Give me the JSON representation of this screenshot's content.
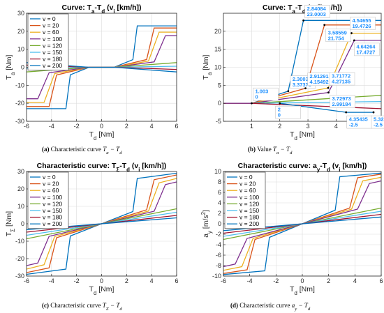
{
  "legend_entries": [
    "v = 0",
    "v = 20",
    "v = 60",
    "v = 100",
    "v = 120",
    "v = 150",
    "v = 180",
    "v = 200"
  ],
  "colors": [
    "#0072BD",
    "#D95319",
    "#EDB120",
    "#7E2F8E",
    "#77AC30",
    "#4DBEEE",
    "#A2142F",
    "#0072BD"
  ],
  "chart_data": [
    {
      "type": "line",
      "title": "Curve: T_a-T_d (v_i [km/h])",
      "xlabel": "T_d [Nm]",
      "ylabel": "T_a [Nm]",
      "xlim": [
        -6,
        6
      ],
      "ylim": [
        -30,
        30
      ],
      "xticks": [
        -6,
        -4,
        -2,
        0,
        2,
        4,
        6
      ],
      "yticks": [
        -30,
        -20,
        -10,
        0,
        10,
        20,
        30
      ],
      "grid": true,
      "legend": "top-left",
      "series": [
        {
          "name": "v = 0",
          "x": [
            -6,
            -2.85,
            -2.5,
            -1,
            1,
            2.5,
            2.85,
            6
          ],
          "y": [
            -23,
            -23,
            -4.2,
            0,
            0,
            4.2,
            23,
            23
          ]
        },
        {
          "name": "v = 20",
          "x": [
            -6,
            -4.2,
            -3.6,
            -1,
            1,
            3.6,
            4.2,
            6
          ],
          "y": [
            -21.8,
            -21.8,
            -4.3,
            0,
            0,
            4.3,
            21.8,
            21.8
          ]
        },
        {
          "name": "v = 60",
          "x": [
            -6,
            -4.6,
            -3.75,
            -1,
            1,
            3.75,
            4.6,
            6
          ],
          "y": [
            -19.5,
            -19.5,
            -3.5,
            0,
            0,
            3.5,
            19.5,
            19.5
          ]
        },
        {
          "name": "v = 100",
          "x": [
            -6,
            -5.1,
            -4.2,
            -1,
            1,
            4.2,
            5.1,
            6
          ],
          "y": [
            -17.5,
            -17.5,
            -3.0,
            0,
            0,
            3.0,
            17.5,
            17.5
          ]
        },
        {
          "name": "v = 120",
          "x": [
            -6,
            -1,
            1,
            6
          ],
          "y": [
            -2.6,
            0,
            0,
            2.6
          ]
        },
        {
          "name": "v = 150",
          "x": [
            -6,
            -1,
            1,
            6
          ],
          "y": [
            -0.6,
            0,
            0,
            0.6
          ]
        },
        {
          "name": "v = 180",
          "x": [
            -6,
            -1,
            1,
            6
          ],
          "y": [
            1.2,
            0,
            0,
            -1.2
          ]
        },
        {
          "name": "v = 200",
          "x": [
            -6,
            -1,
            1,
            6
          ],
          "y": [
            2.6,
            0,
            0,
            -2.6
          ]
        }
      ]
    },
    {
      "type": "line",
      "title": "Curve: T_a-T_d (v_i [km/h])",
      "xlabel": "T_d [Nm]",
      "ylabel": "T_a [Nm]",
      "xlim": [
        0,
        5.6
      ],
      "ylim": [
        -5,
        25
      ],
      "xticks": [
        1,
        2,
        3,
        4,
        5
      ],
      "yticks": [
        -5,
        0,
        5,
        10,
        15,
        20
      ],
      "grid": true,
      "series": [
        {
          "x": [
            0,
            1.003,
            2.3003,
            2.84084,
            5.6
          ],
          "y": [
            0,
            0,
            3.37378,
            23.0003,
            23.0003
          ]
        },
        {
          "x": [
            0,
            1.003,
            2.91291,
            3.58559,
            5.6
          ],
          "y": [
            0,
            0,
            4.15492,
            21.754,
            21.754
          ]
        },
        {
          "x": [
            0,
            1.003,
            3.71772,
            4.54655,
            5.6
          ],
          "y": [
            0,
            0,
            4.27135,
            19.4726,
            19.4726
          ]
        },
        {
          "x": [
            0,
            1.003,
            3.72973,
            4.64264,
            5.6
          ],
          "y": [
            0,
            0,
            2.99184,
            17.4727,
            17.4727
          ]
        },
        {
          "x": [
            1.003,
            5.6
          ],
          "y": [
            0,
            2.2
          ]
        },
        {
          "x": [
            1.003,
            5.6
          ],
          "y": [
            0,
            0.5
          ]
        },
        {
          "x": [
            1.003,
            5.6
          ],
          "y": [
            0,
            -1.5
          ]
        },
        {
          "x": [
            2,
            4.35435,
            5.32733
          ],
          "y": [
            0,
            -2.5,
            -2.5
          ]
        }
      ],
      "annotations": [
        {
          "x": 1.003,
          "y": 0,
          "text": [
            "1.003",
            "0"
          ]
        },
        {
          "x": 2,
          "y": 0,
          "text": [
            "2",
            "0"
          ]
        },
        {
          "x": 2.3003,
          "y": 3.37378,
          "text": [
            "2.3003",
            "3.37378"
          ]
        },
        {
          "x": 2.84084,
          "y": 23.0003,
          "text": [
            "2.84084",
            "23.0003"
          ]
        },
        {
          "x": 2.91291,
          "y": 4.15492,
          "text": [
            "2.91291",
            "4.15492"
          ]
        },
        {
          "x": 3.58559,
          "y": 21.754,
          "text": [
            "3.58559",
            "21.754"
          ]
        },
        {
          "x": 3.71772,
          "y": 4.27135,
          "text": [
            "3.71772",
            "4.27135"
          ]
        },
        {
          "x": 3.72973,
          "y": 2.99184,
          "text": [
            "3.72973",
            "2.99184"
          ]
        },
        {
          "x": 4.35435,
          "y": -2.5,
          "text": [
            "4.35435",
            "-2.5"
          ]
        },
        {
          "x": 4.54655,
          "y": 19.4726,
          "text": [
            "4.54655",
            "19.4726"
          ]
        },
        {
          "x": 4.64264,
          "y": 17.4727,
          "text": [
            "4.64264",
            "17.4727"
          ]
        },
        {
          "x": 5.32733,
          "y": -2.5,
          "text": [
            "5.32733",
            "-2.5"
          ]
        }
      ]
    },
    {
      "type": "line",
      "title": "Characteristic curve: T_Σ-T_d (v_i [km/h])",
      "xlabel": "T_d [Nm]",
      "ylabel": "T_Σ [Nm]",
      "xlim": [
        -6,
        6
      ],
      "ylim": [
        -30,
        30
      ],
      "xticks": [
        -6,
        -4,
        -2,
        0,
        2,
        4,
        6
      ],
      "yticks": [
        -30,
        -20,
        -10,
        0,
        10,
        20,
        30
      ],
      "grid": true,
      "legend": "top-left",
      "series": [
        {
          "name": "v = 0",
          "x": [
            -6,
            -2.85,
            -2.5,
            2.5,
            2.85,
            6
          ],
          "y": [
            -29,
            -26,
            -7,
            7,
            26,
            29
          ]
        },
        {
          "name": "v = 20",
          "x": [
            -6,
            -4.2,
            -3.6,
            3.6,
            4.2,
            6
          ],
          "y": [
            -28,
            -25.3,
            -8,
            8,
            25.3,
            28
          ]
        },
        {
          "name": "v = 60",
          "x": [
            -6,
            -4.6,
            -3.75,
            3.75,
            4.6,
            6
          ],
          "y": [
            -26,
            -23.5,
            -7.3,
            7.3,
            23.5,
            26
          ]
        },
        {
          "name": "v = 100",
          "x": [
            -6,
            -5.1,
            -4.2,
            4.2,
            5.1,
            6
          ],
          "y": [
            -24,
            -22.5,
            -7.2,
            7.2,
            22.5,
            24
          ]
        },
        {
          "name": "v = 120",
          "x": [
            -6,
            6
          ],
          "y": [
            -8.6,
            8.6
          ]
        },
        {
          "name": "v = 150",
          "x": [
            -6,
            6
          ],
          "y": [
            -6.6,
            6.6
          ]
        },
        {
          "name": "v = 180",
          "x": [
            -6,
            6
          ],
          "y": [
            -4.8,
            4.8
          ]
        },
        {
          "name": "v = 200",
          "x": [
            -6,
            6
          ],
          "y": [
            -3.4,
            3.4
          ]
        }
      ]
    },
    {
      "type": "line",
      "title": "Characteristic curve: a_y-T_d (v_i [km/h])",
      "xlabel": "T_d [Nm]",
      "ylabel": "a_y [m/s^2]",
      "xlim": [
        -6,
        6
      ],
      "ylim": [
        -10,
        10
      ],
      "xticks": [
        -6,
        -4,
        -2,
        0,
        2,
        4,
        6
      ],
      "yticks": [
        -10,
        -8,
        -6,
        -4,
        -2,
        0,
        2,
        4,
        6,
        8,
        10
      ],
      "grid": true,
      "legend": "top-left",
      "series": [
        {
          "name": "v = 0",
          "x": [
            -6,
            -2.85,
            -2.5,
            2.5,
            2.85,
            6
          ],
          "y": [
            -9.7,
            -9.0,
            -2.6,
            2.6,
            9.0,
            9.7
          ]
        },
        {
          "name": "v = 20",
          "x": [
            -6,
            -4.2,
            -3.6,
            3.6,
            4.2,
            6
          ],
          "y": [
            -9.5,
            -8.8,
            -3.0,
            3.0,
            8.8,
            9.5
          ]
        },
        {
          "name": "v = 60",
          "x": [
            -6,
            -4.6,
            -3.75,
            3.75,
            4.6,
            6
          ],
          "y": [
            -8.9,
            -8.2,
            -2.8,
            2.8,
            8.2,
            8.9
          ]
        },
        {
          "name": "v = 100",
          "x": [
            -6,
            -5.1,
            -4.2,
            4.2,
            5.1,
            6
          ],
          "y": [
            -8.2,
            -7.7,
            -2.8,
            2.8,
            7.7,
            8.2
          ]
        },
        {
          "name": "v = 120",
          "x": [
            -6,
            6
          ],
          "y": [
            -3.0,
            3.0
          ]
        },
        {
          "name": "v = 150",
          "x": [
            -6,
            6
          ],
          "y": [
            -2.4,
            2.4
          ]
        },
        {
          "name": "v = 180",
          "x": [
            -6,
            6
          ],
          "y": [
            -1.8,
            1.8
          ]
        },
        {
          "name": "v = 200",
          "x": [
            -6,
            6
          ],
          "y": [
            -1.3,
            1.3
          ]
        }
      ]
    }
  ],
  "captions": [
    {
      "label": "(a)",
      "text": "Characteristic curve",
      "math": "T_a − T_d"
    },
    {
      "label": "(b)",
      "text": "Value",
      "math": "T_a − T_d"
    },
    {
      "label": "(c)",
      "text": "Characteristic curve",
      "math": "T_Σ − T_d"
    },
    {
      "label": "(d)",
      "text": "Characteristic curve",
      "math": "a_y − T_d"
    }
  ]
}
